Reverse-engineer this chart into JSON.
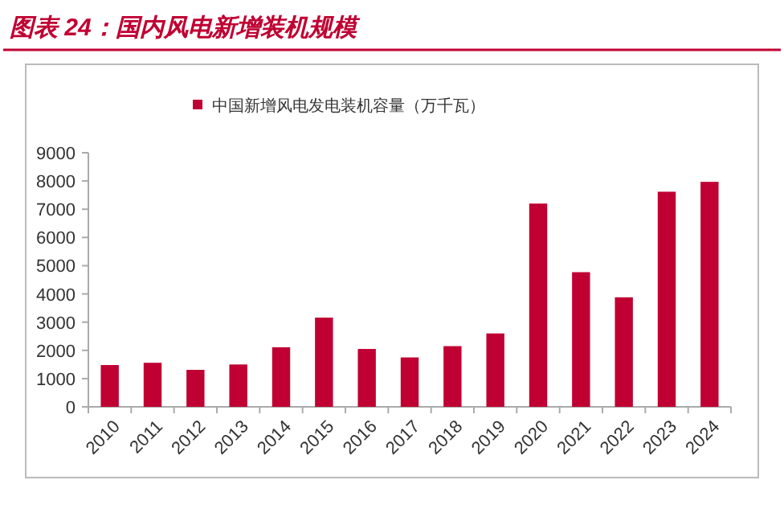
{
  "chart_data": {
    "type": "bar",
    "title": "图表 24：国内风电新增装机规模",
    "categories": [
      "2010",
      "2011",
      "2012",
      "2013",
      "2014",
      "2015",
      "2016",
      "2017",
      "2018",
      "2019",
      "2020",
      "2021",
      "2022",
      "2023",
      "2024"
    ],
    "series": [
      {
        "name": "中国新增风电发电装机容量（万千瓦）",
        "color": "#c00032",
        "values": [
          1480,
          1560,
          1310,
          1500,
          2110,
          3160,
          2050,
          1750,
          2150,
          2600,
          7200,
          4770,
          3880,
          7620,
          7970
        ]
      }
    ],
    "ylim": [
      0,
      9000
    ],
    "yticks": [
      0,
      1000,
      2000,
      3000,
      4000,
      5000,
      6000,
      7000,
      8000,
      9000
    ],
    "grid": false,
    "legend": "top"
  }
}
